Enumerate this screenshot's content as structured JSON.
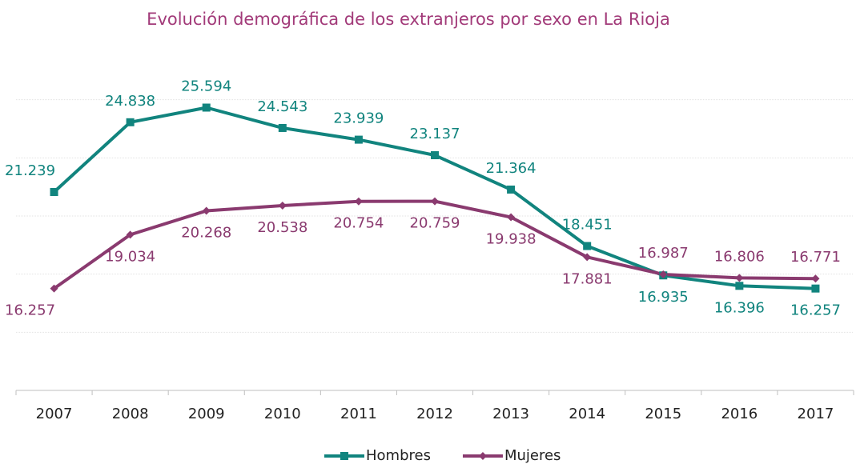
{
  "chart_data": {
    "type": "line",
    "title": "Evolución demográfica de los extranjeros por sexo en La Rioja",
    "categories": [
      "2007",
      "2008",
      "2009",
      "2010",
      "2011",
      "2012",
      "2013",
      "2014",
      "2015",
      "2016",
      "2017"
    ],
    "series": [
      {
        "name": "Hombres",
        "color": "#11847e",
        "marker": "square",
        "values": [
          21239,
          24838,
          25594,
          24543,
          23939,
          23137,
          21364,
          18451,
          16935,
          16396,
          16257
        ],
        "value_labels": [
          "21.239",
          "24.838",
          "25.594",
          "24.543",
          "23.939",
          "23.137",
          "21.364",
          "18.451",
          "16.935",
          "16.396",
          "16.257"
        ]
      },
      {
        "name": "Mujeres",
        "color": "#8a3a6f",
        "marker": "diamond",
        "values": [
          16257,
          19034,
          20268,
          20538,
          20754,
          20759,
          19938,
          17881,
          16987,
          16806,
          16771
        ],
        "value_labels": [
          "16.257",
          "19.034",
          "20.268",
          "20.538",
          "20.754",
          "20.759",
          "19.938",
          "17.881",
          "16.987",
          "16.806",
          "16.771"
        ]
      }
    ],
    "ylim": [
      11000,
      29000
    ],
    "yticks": [
      11000,
      14000,
      17000,
      20000,
      23000,
      26000
    ],
    "grid": true,
    "legend": "bottom"
  }
}
